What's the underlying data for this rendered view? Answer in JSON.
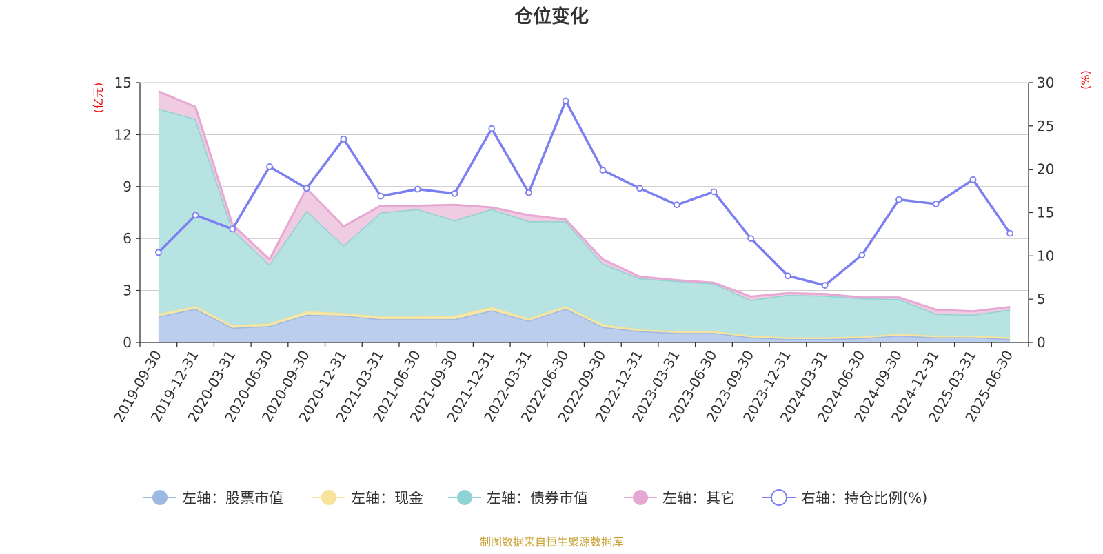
{
  "chart_data": {
    "type": "area",
    "title": "仓位变化",
    "source": "制图数据来自恒生聚源数据库",
    "left_axis": {
      "label": "(亿元)",
      "ylim": [
        0,
        15
      ],
      "ticks": [
        0,
        3,
        6,
        9,
        12,
        15
      ]
    },
    "right_axis": {
      "label": "(%)",
      "ylim": [
        0,
        30
      ],
      "ticks": [
        0,
        5,
        10,
        15,
        20,
        25,
        30
      ]
    },
    "grid": true,
    "legend_position": "bottom",
    "categories": [
      "2019-09-30",
      "2019-12-31",
      "2020-03-31",
      "2020-06-30",
      "2020-09-30",
      "2020-12-31",
      "2021-03-31",
      "2021-06-30",
      "2021-09-30",
      "2021-12-31",
      "2022-03-31",
      "2022-06-30",
      "2022-09-30",
      "2022-12-31",
      "2023-03-31",
      "2023-06-30",
      "2023-09-30",
      "2023-12-31",
      "2024-03-31",
      "2024-06-30",
      "2024-09-30",
      "2024-12-31",
      "2025-03-31",
      "2025-06-30"
    ],
    "series": [
      {
        "name": "左轴：股票市值",
        "axis": "left",
        "kind": "area",
        "color": "#9db8e2",
        "fill": "#b8cbec",
        "values": [
          1.5,
          1.95,
          0.85,
          0.95,
          1.6,
          1.55,
          1.35,
          1.35,
          1.35,
          1.85,
          1.25,
          1.95,
          0.9,
          0.65,
          0.55,
          0.55,
          0.3,
          0.2,
          0.2,
          0.25,
          0.4,
          0.3,
          0.3,
          0.2
        ]
      },
      {
        "name": "左轴：现金",
        "axis": "left",
        "kind": "area",
        "color": "#f7e39a",
        "fill": "#f7e7a8",
        "values": [
          0.15,
          0.15,
          0.15,
          0.15,
          0.2,
          0.15,
          0.15,
          0.15,
          0.2,
          0.2,
          0.15,
          0.15,
          0.15,
          0.1,
          0.1,
          0.1,
          0.1,
          0.1,
          0.1,
          0.1,
          0.1,
          0.1,
          0.1,
          0.1
        ]
      },
      {
        "name": "左轴：债券市值",
        "axis": "left",
        "kind": "area",
        "color": "#8fd3d4",
        "fill": "#b3e1e1",
        "values": [
          11.85,
          10.8,
          5.5,
          3.4,
          5.8,
          3.9,
          6.0,
          6.2,
          5.5,
          5.65,
          5.6,
          4.9,
          3.5,
          2.95,
          2.9,
          2.75,
          2.05,
          2.45,
          2.4,
          2.2,
          2.0,
          1.25,
          1.2,
          1.6
        ]
      },
      {
        "name": "左轴：其它",
        "axis": "left",
        "kind": "area",
        "color": "#e6a8d2",
        "fill": "#efc9e2",
        "values": [
          1.0,
          0.7,
          0.3,
          0.3,
          1.3,
          1.1,
          0.4,
          0.2,
          0.9,
          0.1,
          0.35,
          0.1,
          0.25,
          0.1,
          0.05,
          0.05,
          0.2,
          0.1,
          0.1,
          0.05,
          0.1,
          0.25,
          0.2,
          0.15
        ]
      },
      {
        "name": "右轴：持仓比例(%)",
        "axis": "right",
        "kind": "line",
        "color": "#7b7ff0",
        "values": [
          10.4,
          14.7,
          13.1,
          20.3,
          17.8,
          23.5,
          16.9,
          17.7,
          17.2,
          24.7,
          17.3,
          27.9,
          19.9,
          17.8,
          15.9,
          17.4,
          12.0,
          7.7,
          6.6,
          10.1,
          16.5,
          16.0,
          18.8,
          12.6
        ]
      }
    ]
  }
}
